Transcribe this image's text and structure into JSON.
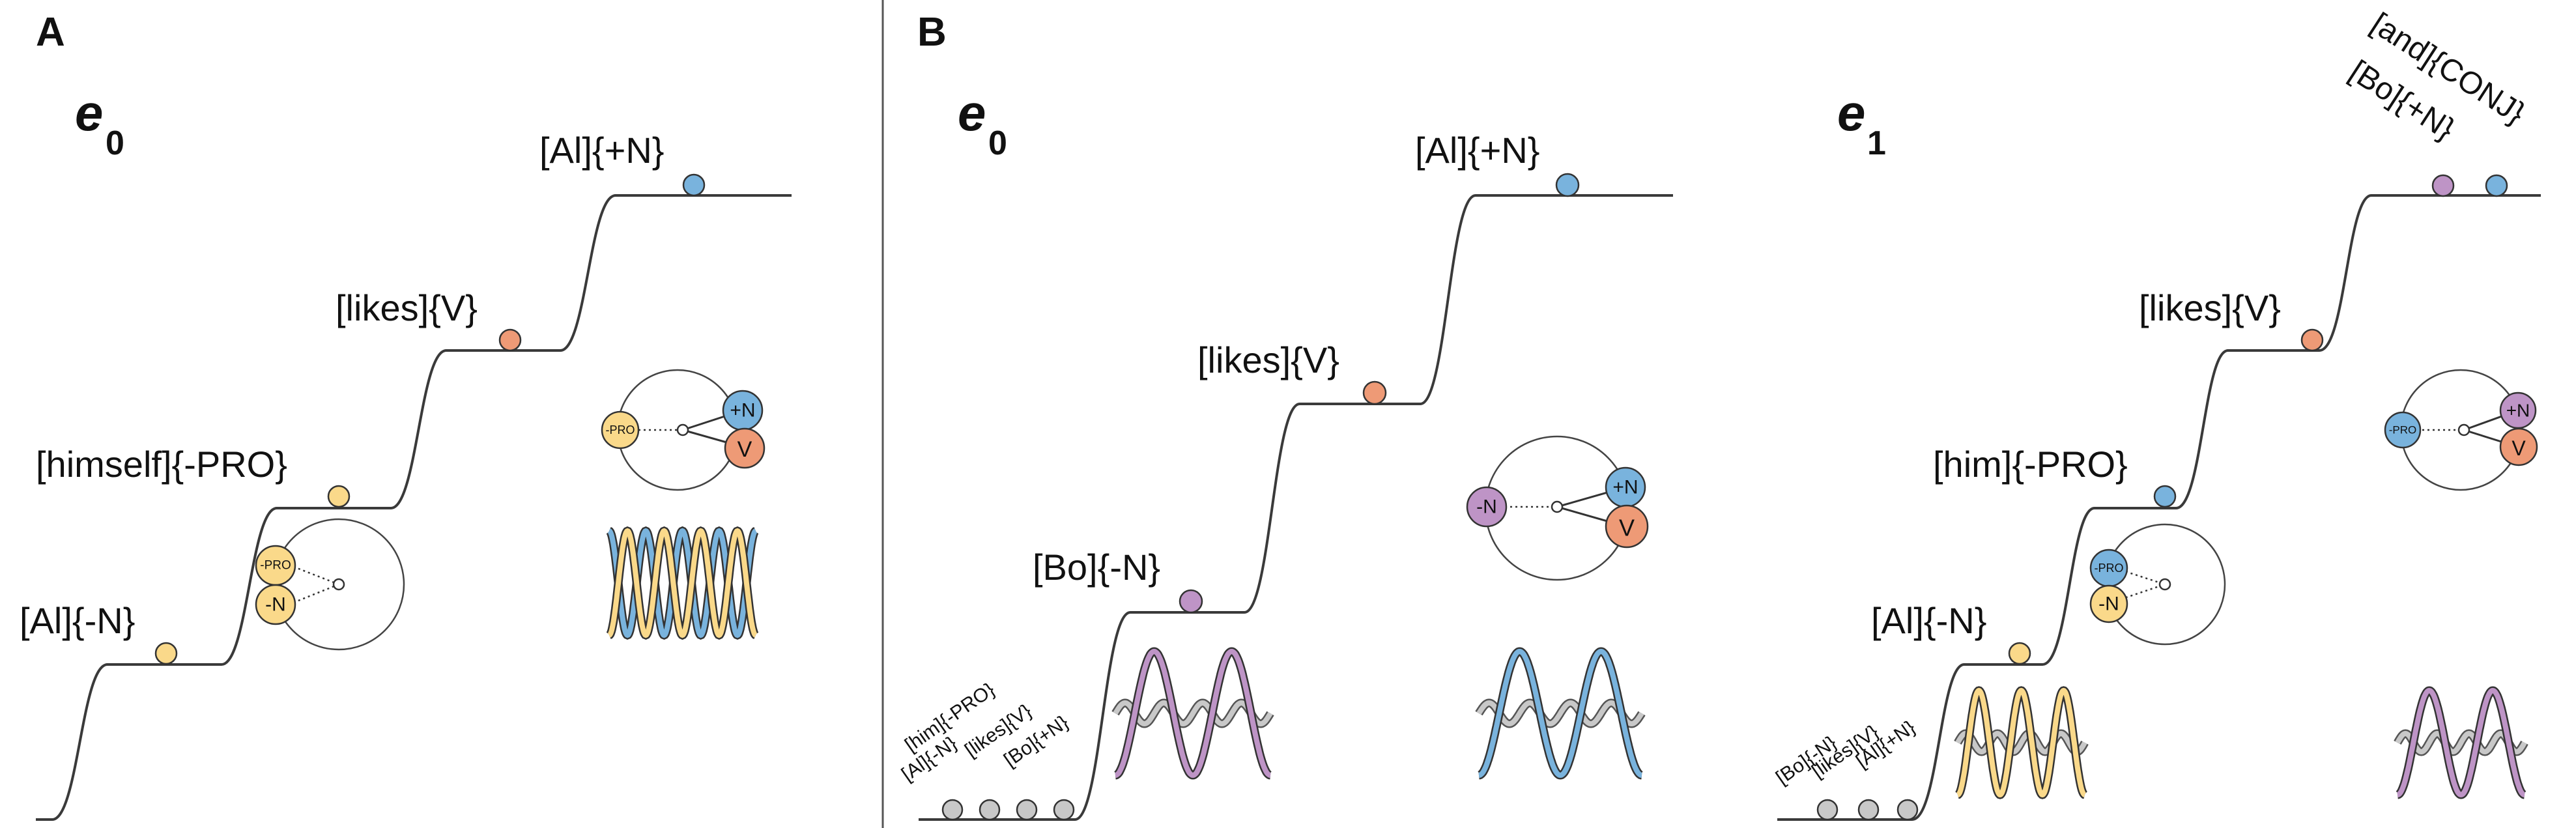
{
  "colors": {
    "yellow": "#FAD98A",
    "orange": "#EE9A76",
    "blue": "#79B3DD",
    "purple": "#BE94C6",
    "gray": "#C8C8C8",
    "line": "#3a3a3a",
    "divider": "#555555"
  },
  "panel_a": {
    "letter": "A",
    "epoch_symbol": "e",
    "epoch_subscript": "0",
    "labels": [
      "[Al]{-N}",
      "[himself]{-PRO}",
      "[likes]{V}",
      "[Al]{+N}"
    ],
    "circle_left": {
      "top": "-PRO",
      "bottom": "-N"
    },
    "circle_right": {
      "left": "-PRO",
      "top": "+N",
      "bottom": "V"
    }
  },
  "panel_b0": {
    "letter": "B",
    "epoch_symbol": "e",
    "epoch_subscript": "0",
    "labels": [
      "[Bo]{-N}",
      "[likes]{V}",
      "[Al]{+N}"
    ],
    "queue_labels": [
      [
        "[him]{-PRO}",
        "[Al]{-N}"
      ],
      [
        "[likes]{V}"
      ],
      [
        "[Bo]{+N}"
      ]
    ],
    "circle": {
      "left": "-N",
      "top": "+N",
      "bottom": "V"
    }
  },
  "panel_b1": {
    "epoch_symbol": "e",
    "epoch_subscript": "1",
    "labels": [
      "[Al]{-N}",
      "[him]{-PRO}",
      "[likes]{V}"
    ],
    "top_labels": [
      "[Bo]{+N}",
      "[and]{CONJ}"
    ],
    "queue_labels": [
      [
        "[Bo]{-N}"
      ],
      [
        "[likes]{V}"
      ],
      [
        "[Al]{+N}"
      ]
    ],
    "circle_left": {
      "top": "-PRO",
      "bottom": "-N"
    },
    "circle_right": {
      "left": "-PRO",
      "top": "+N",
      "bottom": "V"
    }
  }
}
